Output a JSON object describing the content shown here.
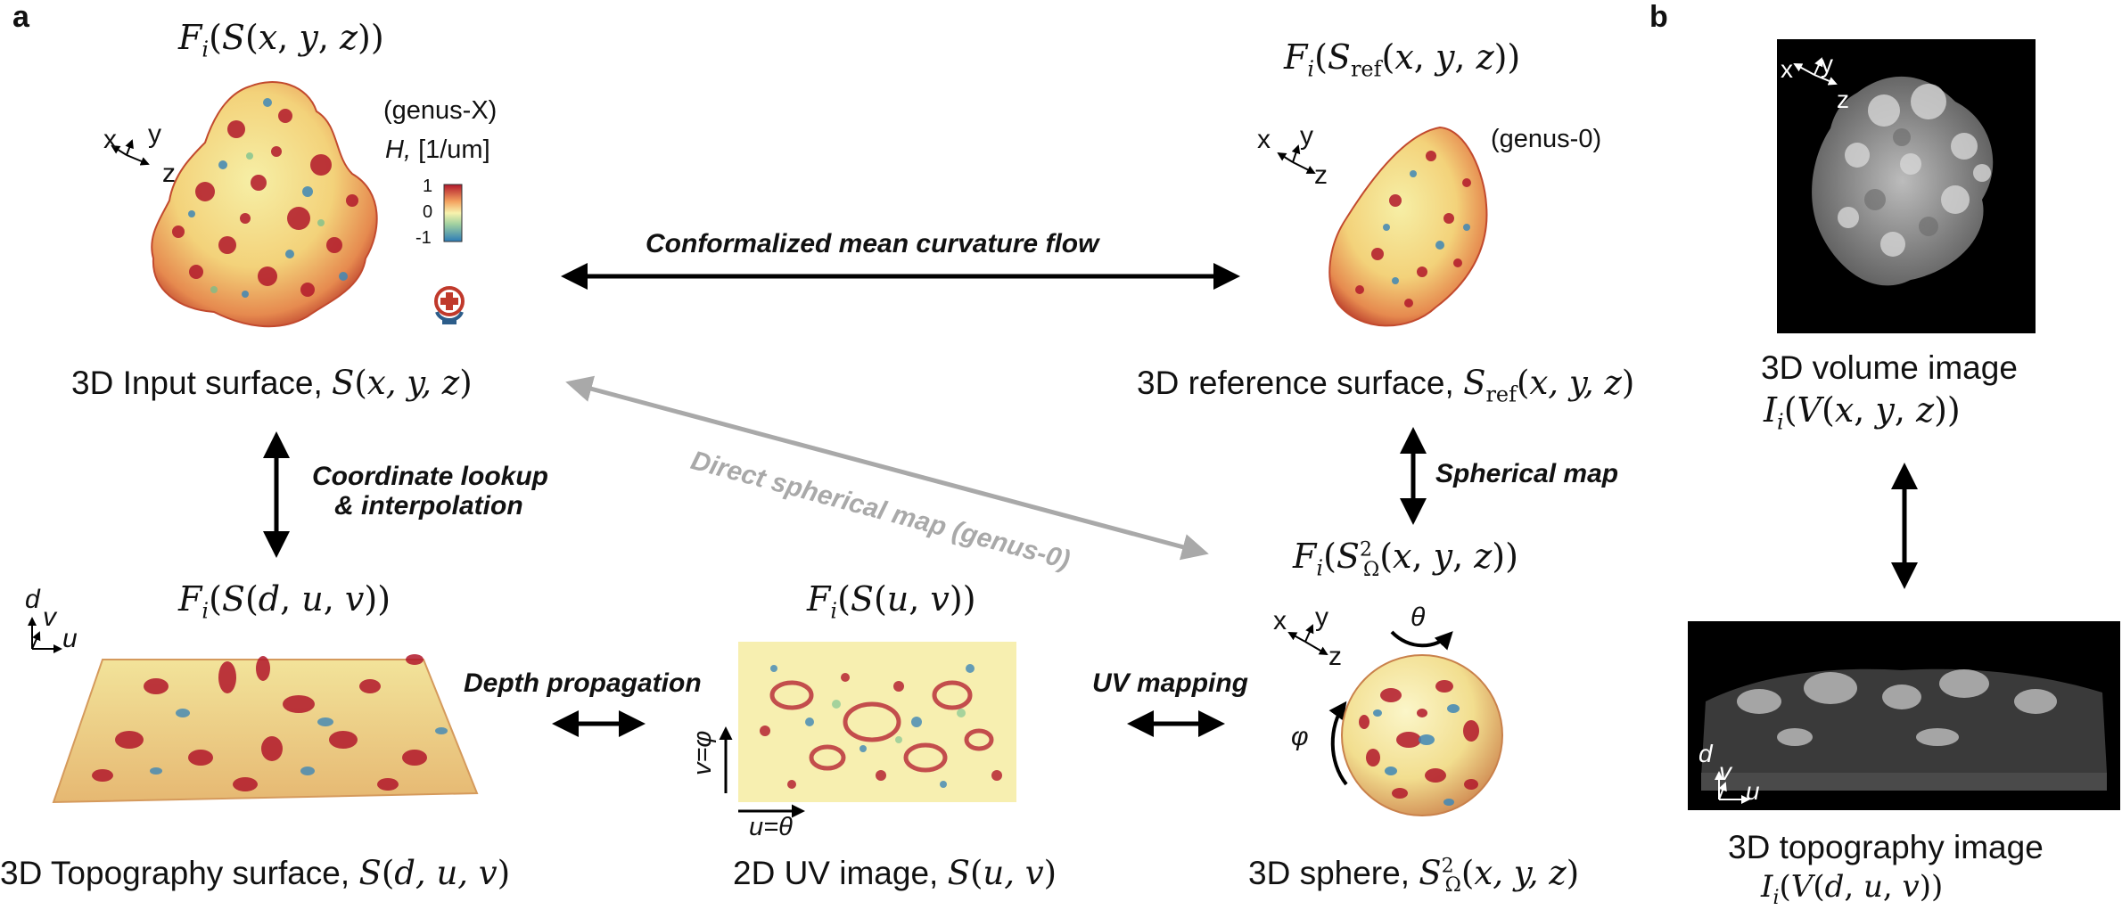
{
  "panels": {
    "a": "a",
    "b": "b"
  },
  "input_surface": {
    "func": "Fᵢ(S(x, y, z))",
    "genus": "(genus-X)",
    "curv_label_italic": "H,",
    "curv_label_unit": "[1/um]",
    "colorbar_ticks": [
      "1",
      "0",
      "-1"
    ],
    "axes": [
      "x",
      "y",
      "z"
    ],
    "caption_text": "3D Input surface,",
    "caption_math": "S(x, y, z)"
  },
  "reference_surface": {
    "func": "Fᵢ(S_ref(x, y, z))",
    "genus": "(genus-0)",
    "axes": [
      "x",
      "y",
      "z"
    ],
    "caption_text": "3D reference surface,",
    "caption_math": "S_ref(x, y, z)"
  },
  "arrows": {
    "cmcf": "Conformalized mean curvature flow",
    "direct": "Direct spherical map (genus-0)",
    "coord1": "Coordinate lookup",
    "coord2": "& interpolation",
    "spherical": "Spherical map",
    "depth": "Depth propagation",
    "uv": "UV mapping"
  },
  "topography": {
    "func": "Fᵢ(S(d, u, v))",
    "axes": [
      "d",
      "v",
      "u"
    ],
    "caption_text": "3D Topography surface,",
    "caption_math": "S(d, u, v)"
  },
  "uv_image": {
    "func": "Fᵢ(S(u, v))",
    "axis_v": "v=φ",
    "axis_u": "u=θ",
    "caption_text": "2D UV image,",
    "caption_math": "S(u, v)"
  },
  "sphere": {
    "func": "Fᵢ(S²_Ω(x, y, z))",
    "theta": "θ",
    "phi": "φ",
    "axes": [
      "x",
      "y",
      "z"
    ],
    "caption_text": "3D sphere,",
    "caption_math": "S²_Ω(x, y, z)"
  },
  "volume": {
    "axes": [
      "x",
      "y",
      "z"
    ],
    "caption_text": "3D volume image",
    "caption_math": "Iᵢ(V(x, y, z))"
  },
  "topo_image": {
    "axes": [
      "d",
      "v",
      "u"
    ],
    "caption_text": "3D topography image",
    "caption_math": "Iᵢ(V(d, u, v))"
  },
  "colors": {
    "arrow": "#000000",
    "arrow_gray": "#a9a9a9",
    "red": "#b2182b",
    "yellow": "#f6efa6",
    "blue": "#3f87b6"
  }
}
